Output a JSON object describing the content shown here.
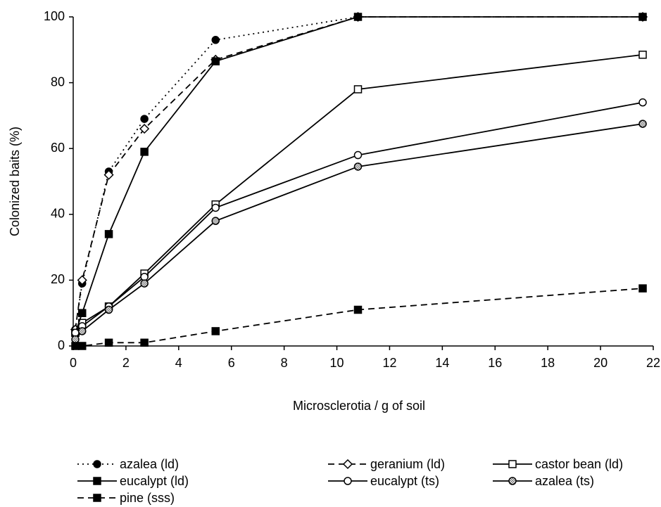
{
  "chart_data": {
    "type": "line",
    "x_label": "Microsclerotia / g of soil",
    "y_label": "Colonized baits (%)",
    "x": [
      0.08,
      0.34,
      1.35,
      2.7,
      5.4,
      10.8,
      21.6
    ],
    "xlim": [
      0,
      22
    ],
    "xticks": [
      0,
      2,
      4,
      6,
      8,
      10,
      12,
      14,
      16,
      18,
      20,
      22
    ],
    "ylim": [
      0,
      100
    ],
    "yticks": [
      0,
      20,
      40,
      60,
      80,
      100
    ],
    "grid": false,
    "legend": "bottom",
    "series": [
      {
        "name": "azalea (ld)",
        "color": "#000000",
        "dash": "dotted",
        "marker": "circle-filled",
        "values": [
          5,
          19,
          53,
          69,
          93,
          100,
          100
        ]
      },
      {
        "name": "geranium (ld)",
        "color": "#000000",
        "dash": "dashed",
        "marker": "diamond-open",
        "values": [
          5,
          20,
          52,
          66,
          87,
          100,
          100
        ]
      },
      {
        "name": "castor bean (ld)",
        "color": "#000000",
        "dash": "solid",
        "marker": "square-open",
        "values": [
          4,
          7,
          12,
          22,
          43,
          78,
          88.5
        ]
      },
      {
        "name": "eucalypt (ld)",
        "color": "#000000",
        "dash": "solid",
        "marker": "square-filled",
        "values": [
          4,
          10,
          34,
          59,
          86.5,
          100,
          100
        ]
      },
      {
        "name": "eucalypt (ts)",
        "color": "#000000",
        "dash": "solid",
        "marker": "circle-open",
        "values": [
          4,
          6,
          12,
          21,
          42,
          58,
          74
        ]
      },
      {
        "name": "azalea (ts)",
        "color": "#000000",
        "dash": "solid",
        "marker": "circle-hatched",
        "values": [
          2,
          4.5,
          11,
          19,
          38,
          54.5,
          67.5
        ]
      },
      {
        "name": "pine (sss)",
        "color": "#000000",
        "dash": "dashed",
        "marker": "square-filled",
        "values": [
          0,
          0,
          1,
          1,
          4.5,
          11,
          17.5
        ]
      }
    ]
  }
}
